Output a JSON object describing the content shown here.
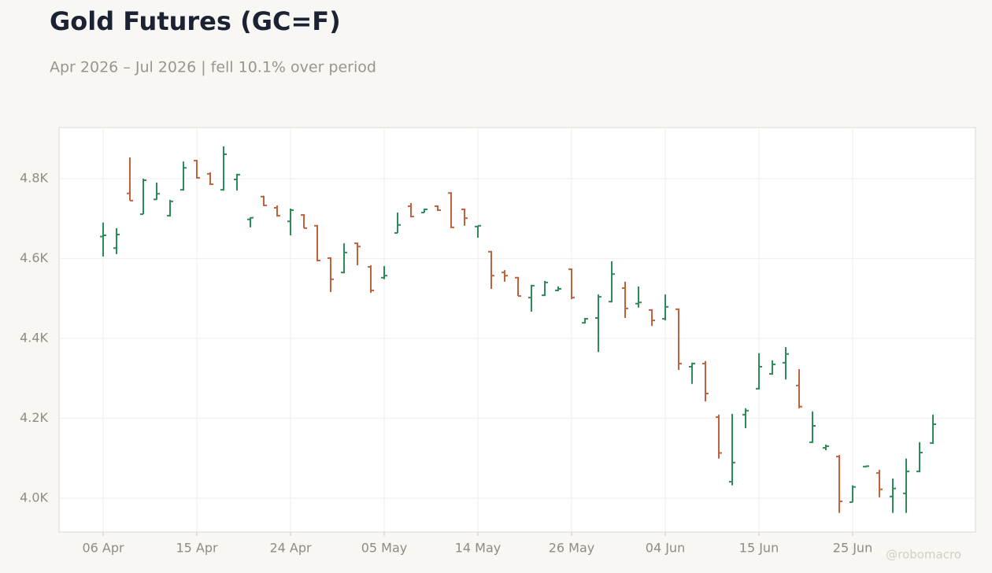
{
  "chart_data": {
    "type": "ohlc",
    "title": "Gold Futures (GC=F)",
    "subtitle": "Apr 2026 – Jul 2026 | fell 10.1% over period",
    "credit": "@robomacro",
    "categories": [
      "06 Apr",
      null,
      null,
      null,
      null,
      null,
      null,
      "15 Apr",
      null,
      null,
      null,
      null,
      null,
      null,
      "24 Apr",
      null,
      null,
      null,
      null,
      null,
      null,
      "05 May",
      null,
      null,
      null,
      null,
      null,
      null,
      "14 May",
      null,
      null,
      null,
      null,
      null,
      null,
      "26 May",
      null,
      null,
      null,
      null,
      null,
      null,
      "04 Jun",
      null,
      null,
      null,
      null,
      null,
      null,
      "15 Jun",
      null,
      null,
      null,
      null,
      null,
      null,
      "25 Jun",
      null,
      null,
      null,
      null,
      null,
      null
    ],
    "open": [
      4655,
      4626,
      4763,
      4711,
      4748,
      4707,
      4772,
      4845,
      4812,
      4772,
      4798,
      4698,
      4755,
      4727,
      4693,
      4709,
      4682,
      4601,
      4565,
      4638,
      4579,
      4552,
      4664,
      4731,
      4715,
      4731,
      4764,
      4723,
      4680,
      4617,
      4565,
      4552,
      4502,
      4508,
      4520,
      4573,
      4439,
      4451,
      4492,
      4526,
      4487,
      4471,
      4449,
      4473,
      4329,
      4337,
      4203,
      4041,
      4209,
      4274,
      4311,
      4339,
      4282,
      4140,
      4126,
      4104,
      3990,
      4079,
      4063,
      4004,
      4012,
      4067,
      4138
    ],
    "high": [
      4690,
      4676,
      4853,
      4800,
      4790,
      4747,
      4843,
      4847,
      4816,
      4881,
      4812,
      4703,
      4757,
      4733,
      4725,
      4711,
      4684,
      4603,
      4638,
      4640,
      4583,
      4581,
      4715,
      4739,
      4725,
      4733,
      4766,
      4725,
      4682,
      4619,
      4571,
      4554,
      4534,
      4544,
      4530,
      4575,
      4451,
      4510,
      4593,
      4542,
      4530,
      4473,
      4510,
      4475,
      4339,
      4343,
      4209,
      4211,
      4225,
      4363,
      4345,
      4378,
      4323,
      4217,
      4134,
      4108,
      4032,
      4081,
      4071,
      4049,
      4099,
      4140,
      4209
    ],
    "low": [
      4605,
      4611,
      4745,
      4711,
      4747,
      4705,
      4770,
      4800,
      4784,
      4770,
      4770,
      4678,
      4731,
      4705,
      4658,
      4676,
      4593,
      4516,
      4563,
      4583,
      4514,
      4548,
      4664,
      4703,
      4715,
      4719,
      4676,
      4682,
      4652,
      4524,
      4542,
      4506,
      4467,
      4506,
      4518,
      4498,
      4437,
      4366,
      4490,
      4451,
      4477,
      4431,
      4445,
      4321,
      4286,
      4242,
      4099,
      4032,
      4175,
      4272,
      4309,
      4297,
      4225,
      4138,
      4120,
      3963,
      3990,
      4077,
      4002,
      3963,
      3963,
      4065,
      4136
    ],
    "close": [
      4658,
      4660,
      4745,
      4796,
      4762,
      4743,
      4827,
      4802,
      4786,
      4861,
      4810,
      4702,
      4733,
      4707,
      4721,
      4676,
      4595,
      4548,
      4615,
      4630,
      4520,
      4557,
      4684,
      4705,
      4723,
      4721,
      4678,
      4701,
      4682,
      4557,
      4557,
      4506,
      4532,
      4540,
      4524,
      4502,
      4449,
      4504,
      4561,
      4475,
      4490,
      4445,
      4479,
      4337,
      4337,
      4262,
      4113,
      4089,
      4219,
      4329,
      4335,
      4361,
      4229,
      4181,
      4130,
      3992,
      4028,
      4080,
      4022,
      4024,
      4067,
      4114,
      4185
    ],
    "up_color": "#2e8b57",
    "down_color": "#c0623e",
    "ylim": [
      3915,
      4928
    ],
    "yticks": [
      {
        "value": 4000,
        "label": "4.0K"
      },
      {
        "value": 4200,
        "label": "4.2K"
      },
      {
        "value": 4400,
        "label": "4.4K"
      },
      {
        "value": 4600,
        "label": "4.6K"
      },
      {
        "value": 4800,
        "label": "4.8K"
      }
    ],
    "grid": true
  }
}
